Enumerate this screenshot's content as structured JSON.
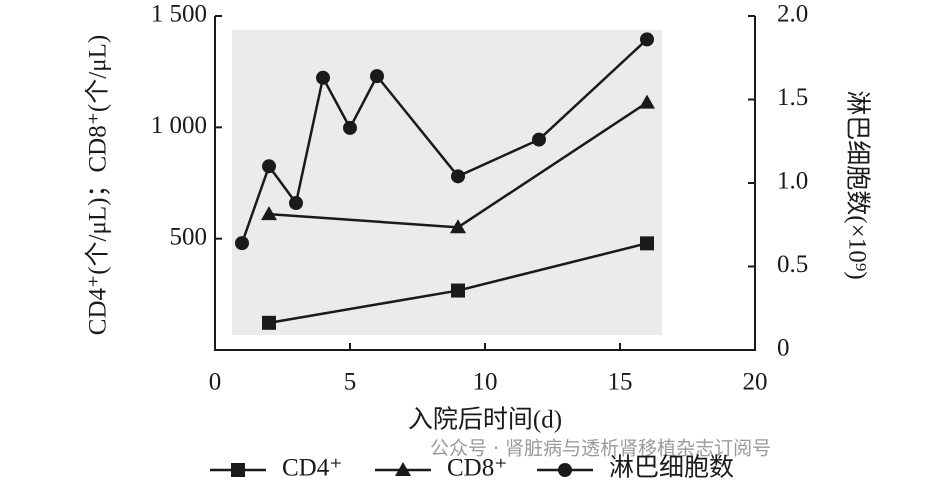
{
  "chart_data": {
    "type": "line",
    "x_label": "入院后时间(d)",
    "y_label": "CD4⁺(个/μL)；CD8⁺(个/μL)",
    "y2_label": "淋巴细胞数(×10⁹)",
    "watermark": "公众号 · 肾脏病与透析肾移植杂志订阅号",
    "xlim": [
      0,
      20
    ],
    "xticks": [
      0,
      5,
      10,
      15,
      20
    ],
    "ylim": [
      0,
      1500
    ],
    "yticks": [
      500,
      {
        "value": 1000,
        "label": "1 000"
      },
      {
        "value": 1500,
        "label": "1 500"
      }
    ],
    "y2lim": [
      0,
      2
    ],
    "y2ticks": [
      0,
      0.5,
      {
        "value": 1,
        "label": "1.0"
      },
      1.5,
      {
        "value": 2,
        "label": "2.0"
      }
    ],
    "series": [
      {
        "name": "CD4⁺",
        "color": "#1a1a1a",
        "marker": "square",
        "x": [
          2,
          9,
          16
        ],
        "values": [
          122,
          267,
          479
        ]
      },
      {
        "name": "CD8⁺",
        "color": "#1a1a1a",
        "marker": "triangle",
        "x": [
          2,
          9,
          16
        ],
        "values": [
          610,
          551,
          1111
        ]
      },
      {
        "name": "淋巴细胞数",
        "color": "#1a1a1a",
        "marker": "circle",
        "axis": "y2",
        "x": [
          1,
          2,
          3,
          4,
          5,
          6,
          9,
          12,
          16
        ],
        "values": [
          0.64,
          1.1,
          0.88,
          1.63,
          1.33,
          1.64,
          1.04,
          1.26,
          1.86
        ]
      }
    ]
  }
}
